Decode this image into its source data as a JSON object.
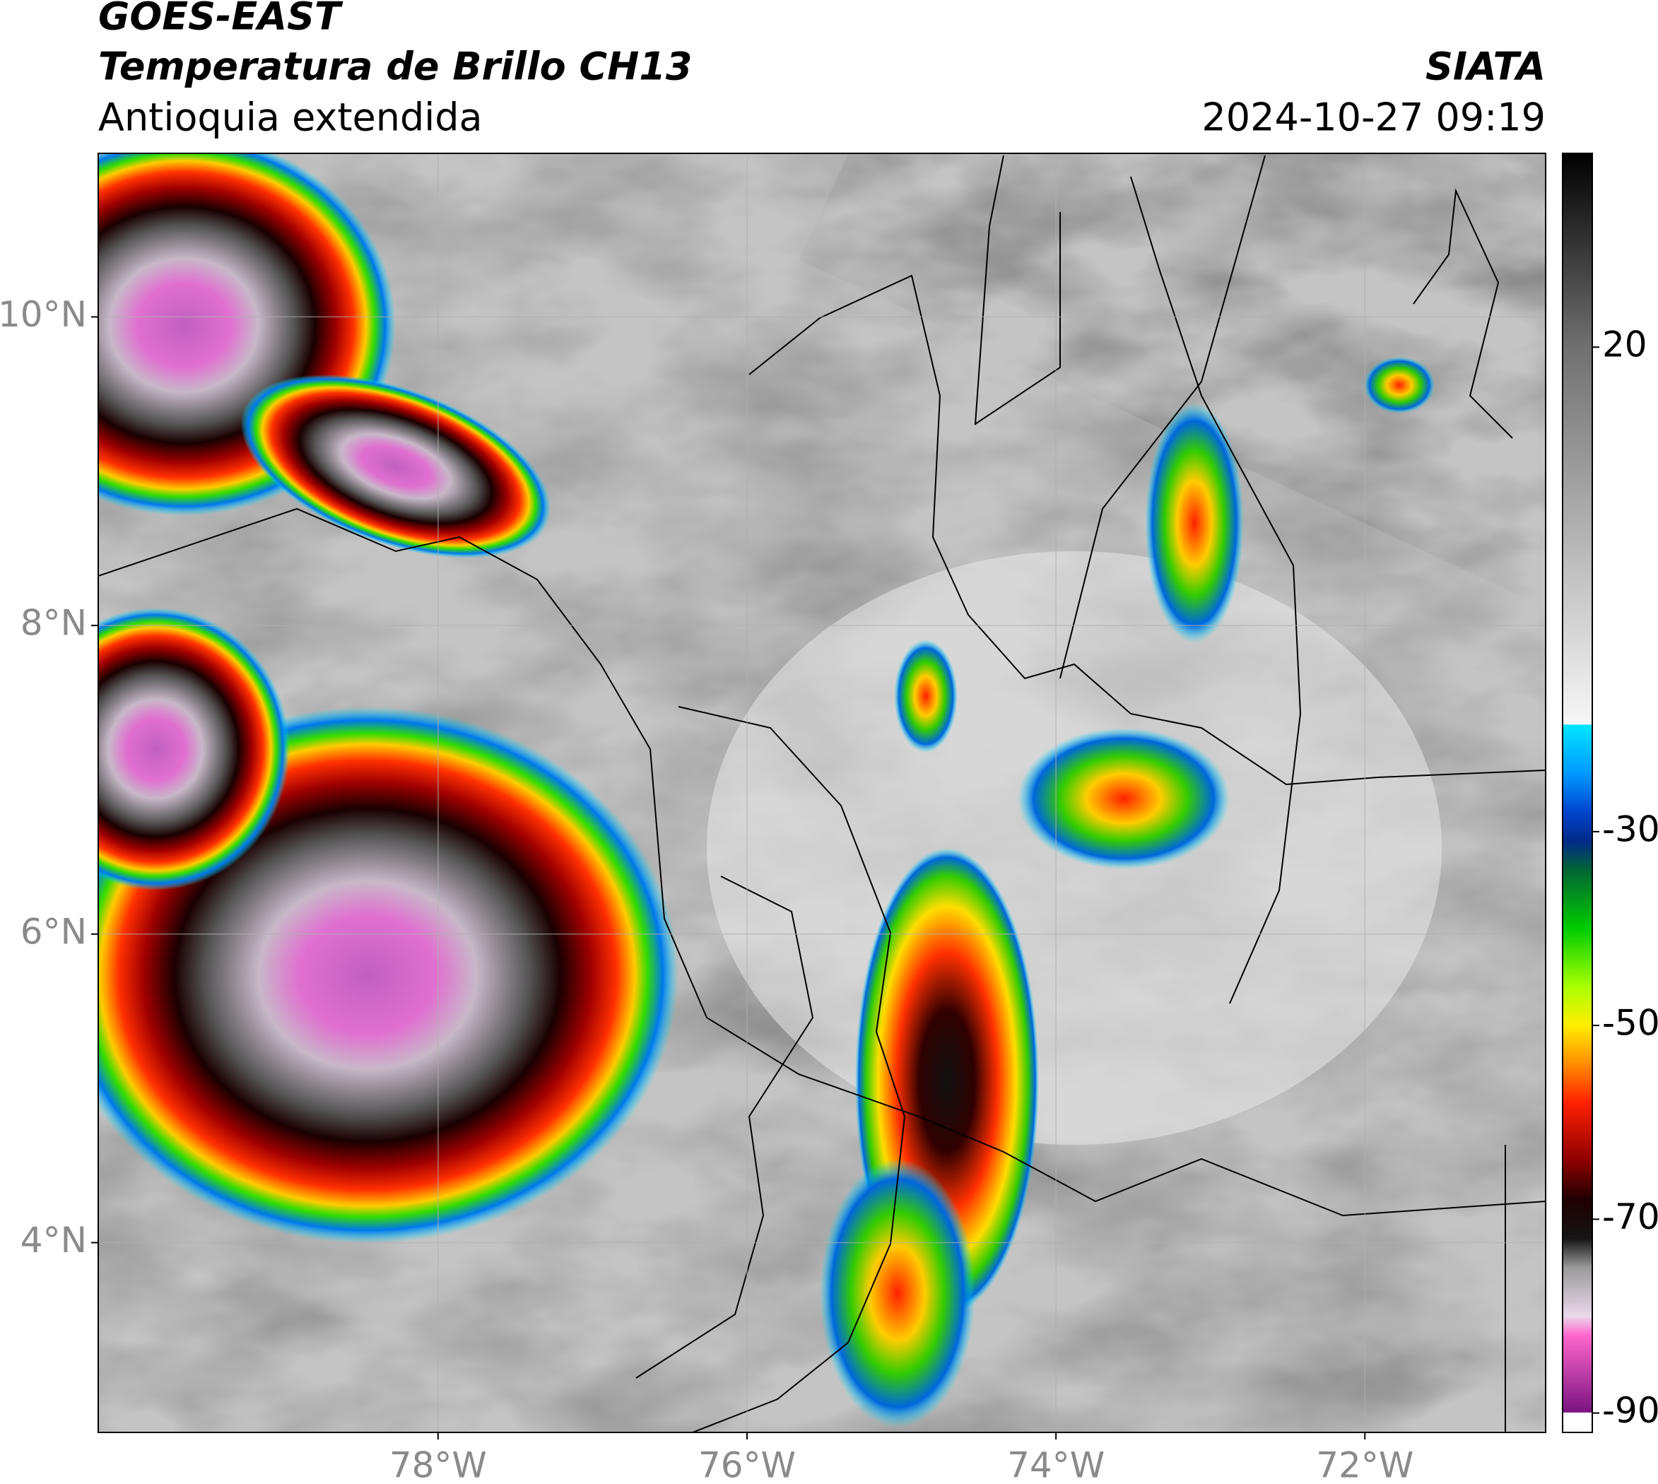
{
  "chart_data": {
    "type": "map",
    "title": "GOES-EAST",
    "subtitle": "Temperatura de Brillo CH13",
    "region": "Antioquia extendida",
    "source": "SIATA",
    "datetime": "2024-10-27 09:19",
    "xlim": [
      -80.2,
      -70.83
    ],
    "ylim": [
      2.77,
      11.06
    ],
    "xticks": [
      {
        "value": -78,
        "label": "78°W"
      },
      {
        "value": -76,
        "label": "76°W"
      },
      {
        "value": -74,
        "label": "74°W"
      },
      {
        "value": -72,
        "label": "72°W"
      }
    ],
    "yticks": [
      {
        "value": 4,
        "label": "4°N"
      },
      {
        "value": 6,
        "label": "6°N"
      },
      {
        "value": 8,
        "label": "8°N"
      },
      {
        "value": 10,
        "label": "10°N"
      }
    ],
    "grid": true,
    "colorbar": {
      "clim": [
        -92,
        40
      ],
      "ticks": [
        20,
        -30,
        -50,
        -70,
        -90
      ],
      "stops": [
        {
          "value": -92,
          "color": "#ffffff"
        },
        {
          "value": -90,
          "color": "#ffffff"
        },
        {
          "value": -89.9,
          "color": "#7a1380"
        },
        {
          "value": -82,
          "color": "#ff66cc"
        },
        {
          "value": -80,
          "color": "#ead8ea"
        },
        {
          "value": -75,
          "color": "#9a9a9a"
        },
        {
          "value": -72,
          "color": "#151515"
        },
        {
          "value": -68,
          "color": "#200000"
        },
        {
          "value": -64,
          "color": "#8b0000"
        },
        {
          "value": -58,
          "color": "#ff2000"
        },
        {
          "value": -54,
          "color": "#ff8c00"
        },
        {
          "value": -50,
          "color": "#ffee00"
        },
        {
          "value": -46,
          "color": "#aaff00"
        },
        {
          "value": -40,
          "color": "#00cc00"
        },
        {
          "value": -34,
          "color": "#006633"
        },
        {
          "value": -31,
          "color": "#002a88"
        },
        {
          "value": -28,
          "color": "#0044cc"
        },
        {
          "value": -24,
          "color": "#0099ff"
        },
        {
          "value": -19,
          "color": "#00e5ff"
        },
        {
          "value": -18.9,
          "color": "#f7f7f7"
        },
        {
          "value": 20,
          "color": "#707070"
        },
        {
          "value": 40,
          "color": "#000000"
        }
      ]
    }
  }
}
